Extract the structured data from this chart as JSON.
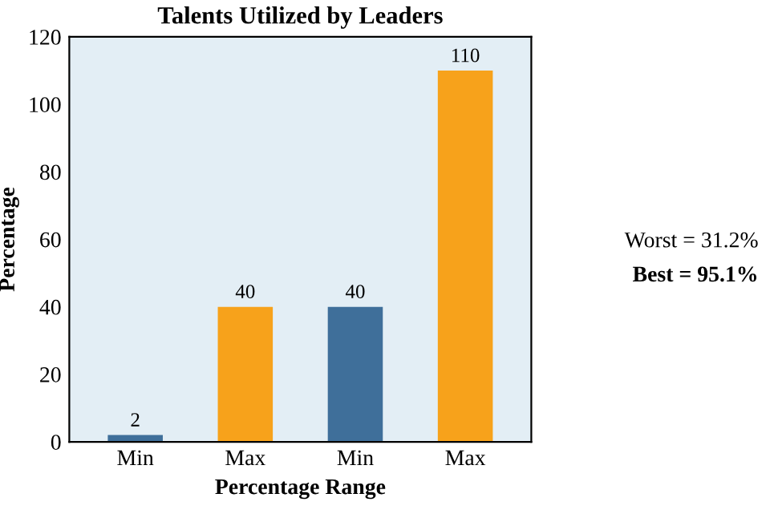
{
  "chart_data": {
    "type": "bar",
    "title": "Talents Utilized by Leaders",
    "xlabel": "Percentage Range",
    "ylabel": "Percentage",
    "categories": [
      "Min",
      "Max",
      "Min",
      "Max"
    ],
    "values": [
      2,
      40,
      40,
      110
    ],
    "colors": [
      "#3f6f9a",
      "#f7a21b",
      "#3f6f9a",
      "#f7a21b"
    ],
    "ylim": [
      0,
      120
    ],
    "yticks": [
      0,
      20,
      40,
      60,
      80,
      100,
      120
    ],
    "grid": false,
    "data_labels": true,
    "annotations": [
      "Worst = 31.2%",
      "Best = 95.1%"
    ]
  }
}
